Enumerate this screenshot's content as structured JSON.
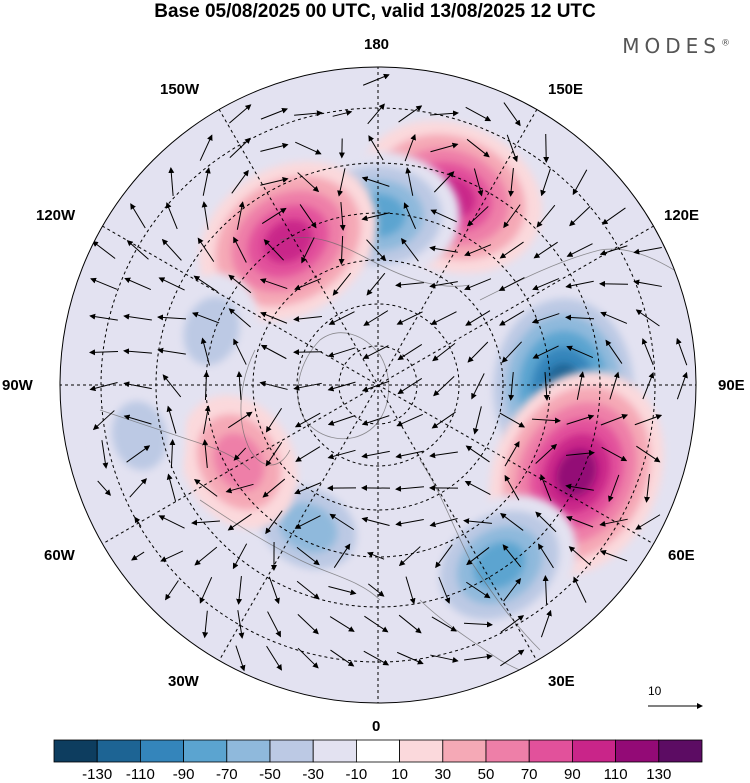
{
  "title": "Base 05/08/2025 00 UTC, valid 13/08/2025 12 UTC",
  "brand": "MODES",
  "brand_mark": "®",
  "longitude_labels": {
    "lon_180": "180",
    "lon_150e": "150E",
    "lon_120e": "120E",
    "lon_90e": "90E",
    "lon_60e": "60E",
    "lon_30e": "30E",
    "lon_0": "0",
    "lon_30w": "30W",
    "lon_60w": "60W",
    "lon_90w": "90W",
    "lon_120w": "120W",
    "lon_150w": "150W"
  },
  "reference_vector": {
    "label": "10",
    "value": 10
  },
  "colorbar": {
    "colors": [
      "#0d3d5f",
      "#1d6494",
      "#3485bb",
      "#5ba4d0",
      "#8fb9dc",
      "#bcc9e4",
      "#e3e2f1",
      "#ffffff",
      "#fbd9dc",
      "#f5a9b6",
      "#ee7fa8",
      "#e2519b",
      "#c92589",
      "#930a76",
      "#5c0c63"
    ],
    "ticks": [
      "-130",
      "-110",
      "-90",
      "-70",
      "-50",
      "-30",
      "-10",
      "10",
      "30",
      "50",
      "70",
      "90",
      "110",
      "130"
    ]
  },
  "anomaly_centers": [
    {
      "lon_deg": 159,
      "colat_deg": 38,
      "value": 90
    },
    {
      "lon_deg": 180,
      "colat_deg": 32,
      "value": -70
    },
    {
      "lon_deg": 212,
      "colat_deg": 32,
      "value": 90
    },
    {
      "lon_deg": 89,
      "colat_deg": 35,
      "value": -110
    },
    {
      "lon_deg": 66,
      "colat_deg": 41,
      "value": 110
    },
    {
      "lon_deg": 34,
      "colat_deg": 41,
      "value": -70
    },
    {
      "lon_deg": 334,
      "colat_deg": 30,
      "value": -50
    },
    {
      "lon_deg": 299,
      "colat_deg": 30,
      "value": 50
    },
    {
      "lon_deg": 252,
      "colat_deg": 33,
      "value": -30
    },
    {
      "lon_deg": 282,
      "colat_deg": 46,
      "value": -30
    }
  ]
}
